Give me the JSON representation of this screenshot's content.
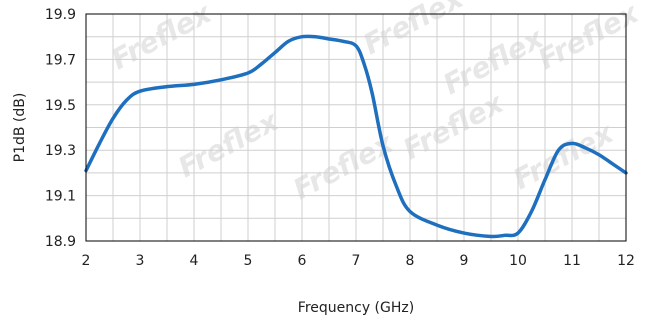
{
  "chart_data": {
    "type": "line",
    "title": "",
    "xlabel": "Frequency (GHz)",
    "ylabel": "P1dB (dB)",
    "xlim": [
      2,
      12
    ],
    "ylim": [
      18.9,
      19.9
    ],
    "xticks": [
      "2",
      "3",
      "4",
      "5",
      "6",
      "7",
      "8",
      "9",
      "10",
      "11",
      "12"
    ],
    "yticks": [
      "18.9",
      "19.1",
      "19.3",
      "19.5",
      "19.7",
      "19.9"
    ],
    "grid": true,
    "series": [
      {
        "color": "#1f6fbf",
        "x": [
          2.0,
          2.25,
          2.5,
          2.75,
          3.0,
          3.5,
          4.0,
          4.5,
          5.0,
          5.25,
          5.5,
          5.75,
          6.0,
          6.25,
          6.5,
          6.75,
          7.0,
          7.15,
          7.3,
          7.5,
          7.75,
          8.0,
          8.5,
          9.0,
          9.5,
          9.75,
          10.0,
          10.25,
          10.5,
          10.75,
          11.0,
          11.25,
          11.5,
          11.75,
          12.0
        ],
        "y": [
          19.21,
          19.33,
          19.44,
          19.52,
          19.56,
          19.58,
          19.59,
          19.61,
          19.64,
          19.68,
          19.73,
          19.78,
          19.8,
          19.8,
          19.79,
          19.78,
          19.76,
          19.68,
          19.55,
          19.32,
          19.14,
          19.03,
          18.97,
          18.935,
          18.92,
          18.925,
          18.935,
          19.03,
          19.17,
          19.3,
          19.33,
          19.31,
          19.28,
          19.24,
          19.2
        ]
      }
    ]
  },
  "watermark": {
    "text": "Freflex"
  }
}
